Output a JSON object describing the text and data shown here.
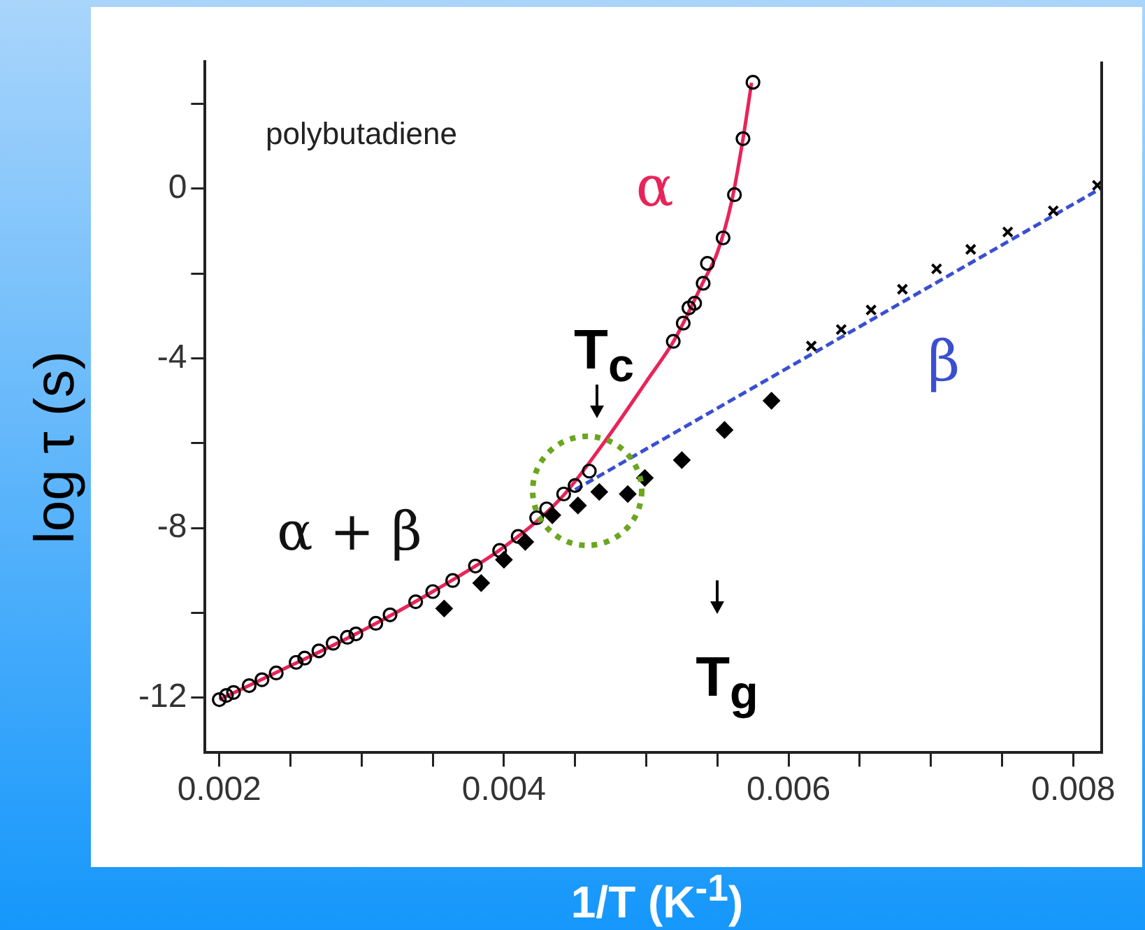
{
  "chart_data": {
    "type": "scatter",
    "xlabel": "1/T (K$^{-1}$)",
    "ylabel": "log τ (s)",
    "xlim": [
      0.0019,
      0.0082
    ],
    "ylim": [
      -13.3,
      3
    ],
    "xticks": [
      0.002,
      {
        "value": 0.0025,
        "label": null
      },
      {
        "value": 0.003,
        "label": null
      },
      {
        "value": 0.0035,
        "label": null
      },
      0.004,
      {
        "value": 0.0045,
        "label": null
      },
      {
        "value": 0.005,
        "label": null
      },
      {
        "value": 0.0055,
        "label": null
      },
      0.006,
      {
        "value": 0.0065,
        "label": null
      },
      {
        "value": 0.007,
        "label": null
      },
      {
        "value": 0.0075,
        "label": null
      },
      0.008
    ],
    "yticks": [
      -12,
      {
        "value": -10,
        "label": null
      },
      -8,
      {
        "value": -6,
        "label": null
      },
      -4,
      {
        "value": -2,
        "label": null
      },
      0,
      {
        "value": 2,
        "label": null
      }
    ],
    "grid": false,
    "legend": false,
    "series": [
      {
        "type": "scatter",
        "marker": "circle",
        "color": "#000000",
        "x": [
          0.002,
          0.00205,
          0.0021,
          0.00221,
          0.0023,
          0.0024,
          0.00254,
          0.0026,
          0.0027,
          0.0028,
          0.0029,
          0.00296,
          0.0031,
          0.0032,
          0.00338,
          0.0035,
          0.00364,
          0.0038,
          0.00397,
          0.0041,
          0.00423,
          0.0043,
          0.00442,
          0.0045,
          0.0046,
          0.00519,
          0.00526,
          0.0053,
          0.00534,
          0.0054,
          0.00543,
          0.00554,
          0.00562,
          0.00568,
          0.00575
        ],
        "values": [
          -12.05,
          -11.95,
          -11.88,
          -11.72,
          -11.58,
          -11.42,
          -11.17,
          -11.07,
          -10.9,
          -10.72,
          -10.58,
          -10.5,
          -10.25,
          -10.05,
          -9.74,
          -9.5,
          -9.24,
          -8.9,
          -8.53,
          -8.2,
          -7.76,
          -7.55,
          -7.2,
          -7.0,
          -6.66,
          -3.6,
          -3.17,
          -2.81,
          -2.7,
          -2.23,
          -1.76,
          -1.16,
          -0.14,
          1.18,
          2.51
        ]
      },
      {
        "type": "scatter",
        "marker": "diamond",
        "color": "#000000",
        "x": [
          0.00358,
          0.00384,
          0.004,
          0.00415,
          0.00434,
          0.00452,
          0.00467,
          0.00487,
          0.00499,
          0.00525,
          0.00555,
          0.00588
        ],
        "values": [
          -9.9,
          -9.3,
          -8.75,
          -8.33,
          -7.7,
          -7.47,
          -7.15,
          -7.2,
          -6.82,
          -6.4,
          -5.69,
          -5.0
        ]
      },
      {
        "type": "scatter",
        "marker": "cross",
        "color": "#000000",
        "x": [
          0.00616,
          0.00637,
          0.00658,
          0.0068,
          0.00704,
          0.00728,
          0.00754,
          0.00786,
          0.00817
        ],
        "values": [
          -3.71,
          -3.32,
          -2.86,
          -2.37,
          -1.89,
          -1.43,
          -1.02,
          -0.52,
          0.08
        ]
      },
      {
        "type": "line",
        "name": "α",
        "marker": "none",
        "line_style": "solid",
        "color": "#e8245a",
        "x": [
          0.002,
          0.0025,
          0.003,
          0.0035,
          0.004,
          0.0044,
          0.0047,
          0.005,
          0.0052,
          0.0054,
          0.0055,
          0.0056,
          0.00568,
          0.00574
        ],
        "values": [
          -12.05,
          -11.25,
          -10.43,
          -9.5,
          -8.45,
          -7.3,
          -6.0,
          -4.55,
          -3.55,
          -2.2,
          -1.5,
          -0.3,
          1.18,
          2.5
        ]
      },
      {
        "type": "line",
        "name": "β",
        "marker": "none",
        "line_style": "dashed",
        "color": "#3a4fd0",
        "x": [
          0.0045,
          0.0082
        ],
        "values": [
          -7.1,
          0.02
        ]
      }
    ],
    "annotations": [
      "polybutadiene",
      "α + β",
      "T$_{c}$",
      "T$_{g}$"
    ]
  }
}
